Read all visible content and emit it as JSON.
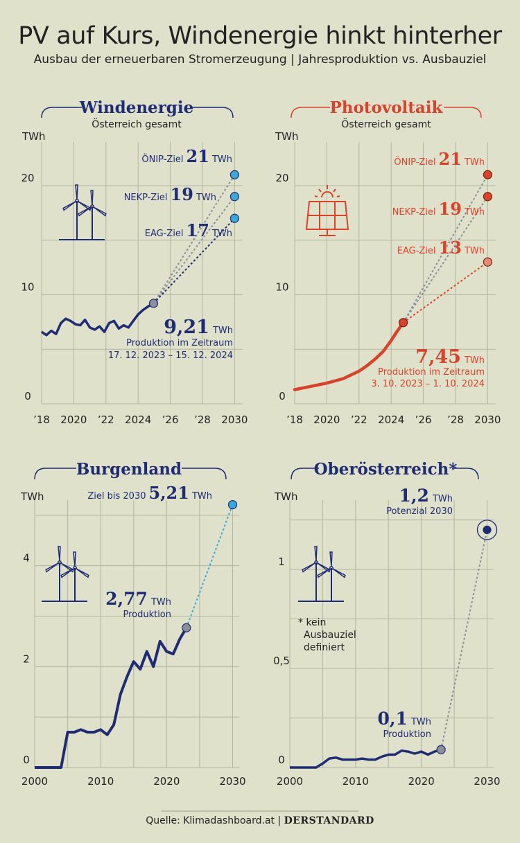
{
  "title": "PV auf Kurs, Windenergie hinkt hinterher",
  "subtitle": "Ausbau der erneuerbaren Stromerzeugung | Jahresproduktion vs. Ausbauziel",
  "footer": {
    "source": "Quelle: Klimadashboard.at",
    "separator": "|",
    "brand": "DERSTANDARD"
  },
  "colors": {
    "navy": "#1f2b73",
    "red": "#d9432b",
    "lightblue": "#3aa9d9",
    "grey": "#8a8f9a",
    "bg": "#dfe1cb"
  },
  "chart_data": [
    {
      "id": "wind",
      "type": "line",
      "title": "Windenergie",
      "subtitle": "Österreich gesamt",
      "ylabel": "TWh",
      "ylim": [
        0,
        24
      ],
      "yticks": [
        0,
        10,
        20
      ],
      "xlim": [
        2018,
        2030.5
      ],
      "xtick_labels": [
        "’18",
        "2020",
        "’22",
        "2024",
        "’26",
        "’28",
        "2030"
      ],
      "series": [
        {
          "name": "Produktion",
          "x": [
            2018.0,
            2018.3,
            2018.6,
            2018.9,
            2019.2,
            2019.5,
            2019.8,
            2020.1,
            2020.4,
            2020.7,
            2021.0,
            2021.3,
            2021.6,
            2021.9,
            2022.2,
            2022.5,
            2022.8,
            2023.1,
            2023.4,
            2023.7,
            2024.0,
            2024.3,
            2024.6,
            2024.96
          ],
          "values": [
            6.6,
            6.3,
            6.7,
            6.4,
            7.4,
            7.8,
            7.6,
            7.3,
            7.2,
            7.7,
            7.0,
            6.8,
            7.1,
            6.6,
            7.4,
            7.6,
            6.9,
            7.2,
            7.0,
            7.6,
            8.2,
            8.6,
            8.9,
            9.21
          ]
        }
      ],
      "current": {
        "x": 2024.96,
        "value": "9,21",
        "unit": "TWh",
        "label": "Produktion im Zeitraum",
        "period": "17. 12. 2023 – 15. 12. 2024"
      },
      "targets": [
        {
          "name": "ÖNIP-Ziel",
          "value": 21,
          "display": "21",
          "unit": "TWh",
          "year": 2030
        },
        {
          "name": "NEKP-Ziel",
          "value": 19,
          "display": "19",
          "unit": "TWh",
          "year": 2030
        },
        {
          "name": "EAG-Ziel",
          "value": 17,
          "display": "17",
          "unit": "TWh",
          "year": 2030
        }
      ]
    },
    {
      "id": "pv",
      "type": "line",
      "title": "Photovoltaik",
      "subtitle": "Österreich gesamt",
      "ylabel": "TWh",
      "ylim": [
        0,
        24
      ],
      "yticks": [
        0,
        10,
        20
      ],
      "xlim": [
        2018,
        2030.5
      ],
      "xtick_labels": [
        "’18",
        "2020",
        "’22",
        "2024",
        "’26",
        "’28",
        "2030"
      ],
      "series": [
        {
          "name": "Produktion",
          "x": [
            2018.0,
            2019.0,
            2020.0,
            2021.0,
            2022.0,
            2022.5,
            2023.0,
            2023.5,
            2024.0,
            2024.3,
            2024.75
          ],
          "values": [
            1.3,
            1.6,
            1.9,
            2.3,
            3.0,
            3.5,
            4.1,
            4.8,
            5.8,
            6.5,
            7.45
          ]
        }
      ],
      "current": {
        "x": 2024.75,
        "value": "7,45",
        "unit": "TWh",
        "label": "Produktion im Zeitraum",
        "period": "3. 10. 2023 – 1. 10. 2024"
      },
      "targets": [
        {
          "name": "ÖNIP-Ziel",
          "value": 21,
          "display": "21",
          "unit": "TWh",
          "year": 2030
        },
        {
          "name": "NEKP-Ziel",
          "value": 19,
          "display": "19",
          "unit": "TWh",
          "year": 2030
        },
        {
          "name": "EAG-Ziel",
          "value": 13,
          "display": "13",
          "unit": "TWh",
          "year": 2030
        }
      ]
    },
    {
      "id": "burgenland",
      "type": "line",
      "title": "Burgenland",
      "ylabel": "TWh",
      "ylim": [
        0,
        5.3
      ],
      "yticks": [
        0,
        2,
        4
      ],
      "xlim": [
        2000,
        2031
      ],
      "xtick_labels": [
        "2000",
        "2010",
        "2020",
        "2030"
      ],
      "series": [
        {
          "name": "Produktion",
          "x": [
            2000,
            2001,
            2002,
            2003,
            2004,
            2005,
            2006,
            2007,
            2008,
            2009,
            2010,
            2011,
            2012,
            2013,
            2014,
            2015,
            2016,
            2017,
            2018,
            2019,
            2020,
            2021,
            2022,
            2023
          ],
          "values": [
            0,
            0,
            0,
            0,
            0,
            0.7,
            0.7,
            0.75,
            0.7,
            0.7,
            0.75,
            0.65,
            0.85,
            1.45,
            1.8,
            2.1,
            1.95,
            2.3,
            2.0,
            2.5,
            2.3,
            2.25,
            2.55,
            2.77
          ]
        }
      ],
      "current": {
        "x": 2023,
        "value": "2,77",
        "unit": "TWh",
        "label": "Produktion"
      },
      "targets": [
        {
          "name": "Ziel bis 2030",
          "value": 5.21,
          "display": "5,21",
          "unit": "TWh",
          "year": 2030
        }
      ]
    },
    {
      "id": "oberoesterreich",
      "type": "line",
      "title": "Oberösterreich*",
      "ylabel": "TWh",
      "ylim": [
        0,
        1.35
      ],
      "yticks": [
        0,
        0.5,
        1
      ],
      "ytick_labels": [
        "0",
        "0,5",
        "1"
      ],
      "xlim": [
        2000,
        2031
      ],
      "xtick_labels": [
        "2000",
        "2010",
        "2020",
        "2030"
      ],
      "series": [
        {
          "name": "Produktion",
          "x": [
            2000,
            2001,
            2002,
            2003,
            2004,
            2005,
            2006,
            2007,
            2008,
            2009,
            2010,
            2011,
            2012,
            2013,
            2014,
            2015,
            2016,
            2017,
            2018,
            2019,
            2020,
            2021,
            2022,
            2023
          ],
          "values": [
            0,
            0,
            0,
            0,
            0,
            0.02,
            0.045,
            0.05,
            0.04,
            0.04,
            0.04,
            0.045,
            0.04,
            0.04,
            0.055,
            0.065,
            0.065,
            0.085,
            0.08,
            0.07,
            0.08,
            0.065,
            0.08,
            0.09
          ]
        }
      ],
      "current": {
        "x": 2023,
        "value": "0,1",
        "unit": "TWh",
        "label": "Produktion"
      },
      "targets": [
        {
          "name": "Potenzial 2030",
          "value": 1.2,
          "display": "1,2",
          "unit": "TWh",
          "year": 2030
        }
      ],
      "note": [
        "* kein",
        "Ausbauziel",
        "definiert"
      ]
    }
  ]
}
